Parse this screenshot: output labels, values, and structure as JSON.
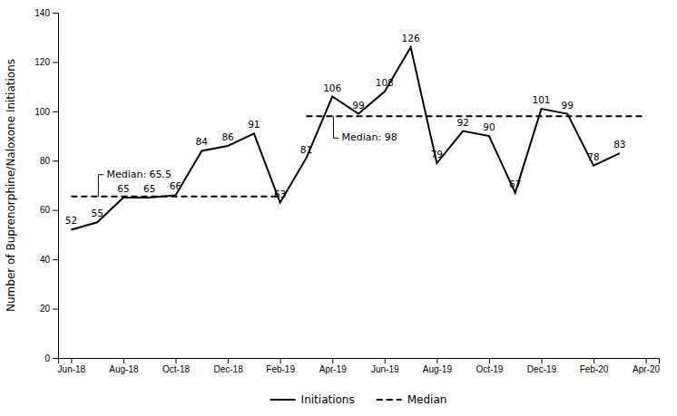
{
  "chart_data": {
    "type": "line",
    "y_label": "Number of Buprenorphine/Naloxone Initiations",
    "x": [
      0,
      1,
      2,
      3,
      4,
      5,
      6,
      7,
      8,
      9,
      10,
      11,
      12,
      13,
      14,
      15,
      16,
      17,
      18,
      19,
      20,
      21
    ],
    "series": [
      {
        "name": "Initiations",
        "color": "#000000",
        "line_style": "solid",
        "data_labels": true,
        "values": [
          52,
          55,
          65,
          65,
          66,
          84,
          86,
          91,
          63,
          81,
          106,
          99,
          108,
          126,
          79,
          92,
          90,
          67,
          101,
          99,
          78,
          83
        ]
      },
      {
        "name": "Median",
        "color": "#000000",
        "line_style": "dashed",
        "x": [
          0,
          8,
          null,
          9,
          22
        ],
        "values": [
          65.5,
          65.5,
          null,
          98,
          98
        ]
      }
    ],
    "annotations": [
      "Median: 65.5",
      "Median: 98"
    ],
    "xlim": [
      -0.5,
      22.5
    ],
    "xticks": [
      {
        "value": 0,
        "label": "Jun-18"
      },
      {
        "value": 2,
        "label": "Aug-18"
      },
      {
        "value": 4,
        "label": "Oct-18"
      },
      {
        "value": 6,
        "label": "Dec-18"
      },
      {
        "value": 8,
        "label": "Feb-19"
      },
      {
        "value": 10,
        "label": "Apr-19"
      },
      {
        "value": 12,
        "label": "Jun-19"
      },
      {
        "value": 14,
        "label": "Aug-19"
      },
      {
        "value": 16,
        "label": "Oct-19"
      },
      {
        "value": 18,
        "label": "Dec-19"
      },
      {
        "value": 20,
        "label": "Feb-20"
      },
      {
        "value": 22,
        "label": "Apr-20"
      }
    ],
    "ylim": [
      0,
      140
    ],
    "yticks": [
      0,
      20,
      40,
      60,
      80,
      100,
      120,
      140
    ],
    "grid": false,
    "legend": "bottom"
  }
}
